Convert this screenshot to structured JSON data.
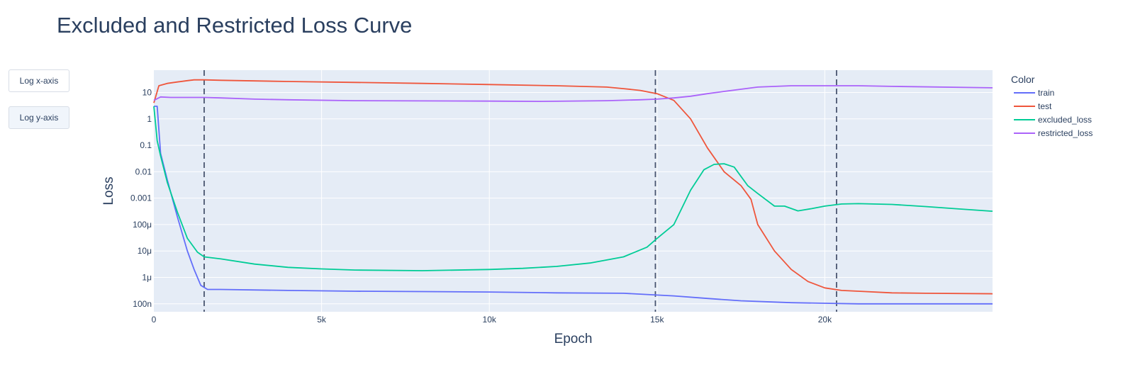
{
  "title": "Excluded and Restricted Loss Curve",
  "buttons": [
    {
      "label": "Log x-axis",
      "active": false
    },
    {
      "label": "Log y-axis",
      "active": true
    }
  ],
  "chart_data": {
    "type": "line",
    "title": "Excluded and Restricted Loss Curve",
    "xlabel": "Epoch",
    "ylabel": "Loss",
    "xlim": [
      0,
      25000
    ],
    "ylim": [
      5e-08,
      70
    ],
    "y_scale": "log",
    "grid": true,
    "plot_bg": "#e5ecf6",
    "legend": {
      "title": "Color",
      "placement": "right"
    },
    "x_ticks": [
      {
        "value": 0,
        "label": "0"
      },
      {
        "value": 5000,
        "label": "5k"
      },
      {
        "value": 10000,
        "label": "10k"
      },
      {
        "value": 15000,
        "label": "15k"
      },
      {
        "value": 20000,
        "label": "20k"
      }
    ],
    "y_ticks": [
      {
        "value": 1e-07,
        "label": "100n"
      },
      {
        "value": 1e-06,
        "label": "1μ"
      },
      {
        "value": 1e-05,
        "label": "10μ"
      },
      {
        "value": 0.0001,
        "label": "100μ"
      },
      {
        "value": 0.001,
        "label": "0.001"
      },
      {
        "value": 0.01,
        "label": "0.01"
      },
      {
        "value": 0.1,
        "label": "0.1"
      },
      {
        "value": 1,
        "label": "1"
      },
      {
        "value": 10,
        "label": "10"
      }
    ],
    "vlines": [
      1500,
      14950,
      20350
    ],
    "series": [
      {
        "name": "train",
        "color": "#636efa",
        "x": [
          0,
          100,
          200,
          400,
          700,
          1000,
          1200,
          1400,
          1600,
          2000,
          4000,
          6000,
          8000,
          10000,
          12000,
          14000,
          15500,
          16500,
          17500,
          19000,
          20000,
          21000,
          23000,
          25000
        ],
        "y": [
          3,
          3,
          0.05,
          0.005,
          0.0002,
          1e-05,
          2e-06,
          5e-07,
          3.5e-07,
          3.5e-07,
          3.2e-07,
          3e-07,
          2.9e-07,
          2.8e-07,
          2.6e-07,
          2.5e-07,
          2e-07,
          1.6e-07,
          1.3e-07,
          1.1e-07,
          1.05e-07,
          1e-07,
          1e-07,
          1e-07
        ]
      },
      {
        "name": "test",
        "color": "#ef553b",
        "x": [
          0,
          150,
          400,
          700,
          1000,
          1200,
          1500,
          2000,
          4000,
          6000,
          8000,
          10000,
          12000,
          13500,
          14000,
          14500,
          15000,
          15500,
          16000,
          16500,
          17000,
          17500,
          17800,
          18000,
          18500,
          19000,
          19500,
          20000,
          20500,
          21000,
          22000,
          23000,
          25000
        ],
        "y": [
          4,
          18,
          22,
          25,
          28,
          30,
          30,
          29,
          26,
          24,
          22,
          20,
          18,
          16,
          14,
          12,
          9,
          5,
          1,
          0.08,
          0.01,
          0.003,
          0.0009,
          0.0001,
          1e-05,
          2e-06,
          7e-07,
          4e-07,
          3.2e-07,
          3e-07,
          2.6e-07,
          2.5e-07,
          2.4e-07
        ]
      },
      {
        "name": "excluded_loss",
        "color": "#00cc96",
        "x": [
          0,
          100,
          200,
          400,
          700,
          1000,
          1300,
          1500,
          2000,
          3000,
          4000,
          5000,
          6000,
          8000,
          10000,
          11000,
          12000,
          13000,
          14000,
          14700,
          15000,
          15500,
          16000,
          16400,
          16700,
          17000,
          17300,
          17700,
          18000,
          18500,
          18800,
          19200,
          19600,
          20000,
          20500,
          21000,
          22000,
          23000,
          24000,
          25000
        ],
        "y": [
          3,
          0.15,
          0.04,
          0.004,
          0.0003,
          3e-05,
          9e-06,
          6e-06,
          5e-06,
          3.2e-06,
          2.4e-06,
          2.1e-06,
          1.9e-06,
          1.8e-06,
          2e-06,
          2.2e-06,
          2.6e-06,
          3.5e-06,
          6e-06,
          1.4e-05,
          3e-05,
          0.0001,
          0.002,
          0.012,
          0.019,
          0.02,
          0.015,
          0.003,
          0.0015,
          0.0005,
          0.0005,
          0.00033,
          0.0004,
          0.0005,
          0.0006,
          0.00062,
          0.00058,
          0.00048,
          0.00039,
          0.00032
        ]
      },
      {
        "name": "restricted_loss",
        "color": "#ab63fa",
        "x": [
          0,
          200,
          500,
          1000,
          1500,
          2000,
          3000,
          4000,
          6000,
          8000,
          10000,
          11500,
          13000,
          13500,
          14500,
          15000,
          15500,
          16000,
          16500,
          17000,
          18000,
          19000,
          20000,
          21000,
          22000,
          25000
        ],
        "y": [
          5,
          6.8,
          6.5,
          6.5,
          6.5,
          6.2,
          5.6,
          5.3,
          4.9,
          4.8,
          4.7,
          4.6,
          4.8,
          4.9,
          5.3,
          5.6,
          6.2,
          7.2,
          9,
          11,
          16,
          18,
          18,
          18,
          17,
          15
        ]
      }
    ]
  }
}
